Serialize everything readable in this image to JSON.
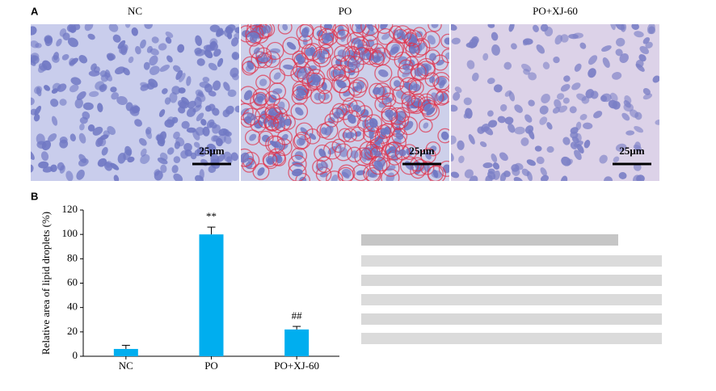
{
  "panel_a": {
    "label": "A",
    "images": [
      {
        "title": "NC",
        "scale_bar": "25μm"
      },
      {
        "title": "PO",
        "scale_bar": "25μm"
      },
      {
        "title": "PO+XJ-60",
        "scale_bar": "25μm"
      }
    ]
  },
  "panel_b_label": "B",
  "chart_data": {
    "type": "bar",
    "ylabel": "Relative area of lipid droplets (%)",
    "categories": [
      "NC",
      "PO",
      "PO+XJ-60"
    ],
    "values": [
      6,
      100,
      22
    ],
    "errors": [
      3,
      6,
      2.5
    ],
    "value_annotations": [
      null,
      "**",
      "##"
    ],
    "color": "#00aeef",
    "ylim": [
      0,
      120
    ],
    "yticks": [
      0,
      20,
      40,
      60,
      80,
      100,
      120
    ]
  }
}
